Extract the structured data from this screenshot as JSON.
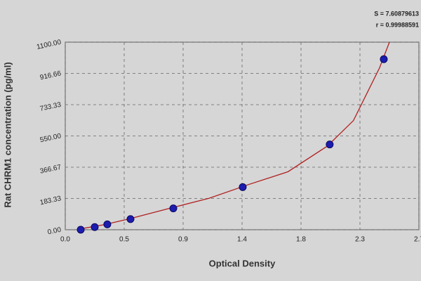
{
  "chart_data": {
    "type": "scatter",
    "stats": [
      "S = 7.60879613",
      "r = 0.99988591"
    ],
    "xlabel": "Optical Density",
    "ylabel": "Rat CHRM1 concentration (pg/ml)",
    "xlim": [
      0,
      2.7
    ],
    "ylim": [
      0,
      1100
    ],
    "xticks": [
      {
        "value": 0,
        "label": "0.0"
      },
      {
        "value": 0.45,
        "label": "0.5"
      },
      {
        "value": 0.9,
        "label": "0.9"
      },
      {
        "value": 1.35,
        "label": "1.4"
      },
      {
        "value": 1.8,
        "label": "1.8"
      },
      {
        "value": 2.25,
        "label": "2.3"
      },
      {
        "value": 2.7,
        "label": "2.7"
      }
    ],
    "yticks": [
      {
        "value": 0,
        "label": "0.00"
      },
      183.33,
      366.67,
      {
        "value": 550,
        "label": "550.00"
      },
      733.33,
      916.66,
      {
        "value": 1100,
        "label": "1100.00"
      }
    ],
    "grid": true,
    "series": [
      {
        "type": "line",
        "color": "#b02020",
        "x": [
          0.1,
          0.3,
          0.5,
          0.8,
          1.1,
          1.4,
          1.7,
          2.0,
          2.2,
          2.4,
          2.475
        ],
        "values": [
          3,
          30,
          66,
          126,
          185,
          265,
          340,
          490,
          640,
          950,
          1100
        ]
      },
      {
        "type": "scatter",
        "color": "#1c1cb0",
        "x": [
          0.118,
          0.225,
          0.321,
          0.498,
          0.825,
          1.355,
          2.019,
          2.432
        ],
        "values": [
          0,
          15.6,
          31.25,
          62.5,
          125,
          250,
          500,
          1000
        ]
      }
    ]
  }
}
